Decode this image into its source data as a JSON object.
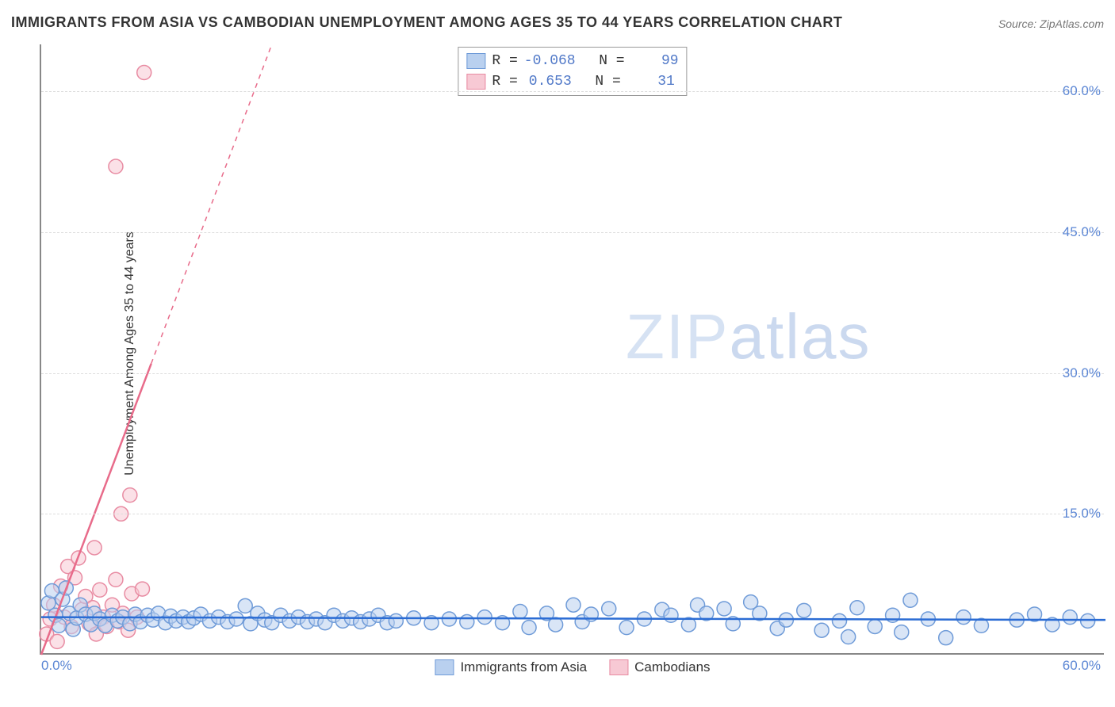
{
  "title": "IMMIGRANTS FROM ASIA VS CAMBODIAN UNEMPLOYMENT AMONG AGES 35 TO 44 YEARS CORRELATION CHART",
  "source": "Source: ZipAtlas.com",
  "ylabel": "Unemployment Among Ages 35 to 44 years",
  "watermark_a": "ZIP",
  "watermark_b": "atlas",
  "chart": {
    "type": "scatter",
    "xlim": [
      0,
      60
    ],
    "ylim": [
      0,
      65
    ],
    "yticks": [
      15,
      30,
      45,
      60
    ],
    "ytick_labels": [
      "15.0%",
      "30.0%",
      "45.0%",
      "60.0%"
    ],
    "xtick_min": "0.0%",
    "xtick_max": "60.0%",
    "grid_color": "#dddddd",
    "axis_color": "#888888",
    "tick_fontcolor": "#5b86d4",
    "marker_radius": 9,
    "marker_stroke_width": 1.5,
    "line_width_solid": 2.5,
    "line_width_dash": 1.5
  },
  "series": [
    {
      "name": "Immigrants from Asia",
      "color_fill": "#b9d0ef",
      "color_stroke": "#6f9bd8",
      "color_line": "#2b6cd4",
      "R": "-0.068",
      "N": "99",
      "trend": {
        "x1": 0,
        "y1": 4.0,
        "x2": 60,
        "y2": 3.7
      },
      "points": [
        [
          0.4,
          5.5
        ],
        [
          0.6,
          6.8
        ],
        [
          0.8,
          4.2
        ],
        [
          1.0,
          3.1
        ],
        [
          1.2,
          5.9
        ],
        [
          1.4,
          7.1
        ],
        [
          1.6,
          4.4
        ],
        [
          1.8,
          2.7
        ],
        [
          2.0,
          3.9
        ],
        [
          2.2,
          5.3
        ],
        [
          2.5,
          4.3
        ],
        [
          2.8,
          3.2
        ],
        [
          3.0,
          4.4
        ],
        [
          3.3,
          3.8
        ],
        [
          3.6,
          3.1
        ],
        [
          4.0,
          4.2
        ],
        [
          4.3,
          3.6
        ],
        [
          4.6,
          4.0
        ],
        [
          5.0,
          3.3
        ],
        [
          5.3,
          4.3
        ],
        [
          5.6,
          3.5
        ],
        [
          6.0,
          4.2
        ],
        [
          6.3,
          3.7
        ],
        [
          6.6,
          4.4
        ],
        [
          7.0,
          3.4
        ],
        [
          7.3,
          4.1
        ],
        [
          7.6,
          3.6
        ],
        [
          8.0,
          4.0
        ],
        [
          8.3,
          3.5
        ],
        [
          8.6,
          3.9
        ],
        [
          9.0,
          4.3
        ],
        [
          9.5,
          3.6
        ],
        [
          10.0,
          4.0
        ],
        [
          10.5,
          3.5
        ],
        [
          11.0,
          3.8
        ],
        [
          11.5,
          5.2
        ],
        [
          11.8,
          3.3
        ],
        [
          12.2,
          4.4
        ],
        [
          12.6,
          3.7
        ],
        [
          13.0,
          3.4
        ],
        [
          13.5,
          4.2
        ],
        [
          14.0,
          3.6
        ],
        [
          14.5,
          4.0
        ],
        [
          15.0,
          3.5
        ],
        [
          15.5,
          3.8
        ],
        [
          16.0,
          3.4
        ],
        [
          16.5,
          4.2
        ],
        [
          17.0,
          3.6
        ],
        [
          17.5,
          3.9
        ],
        [
          18.0,
          3.5
        ],
        [
          18.5,
          3.8
        ],
        [
          19.0,
          4.2
        ],
        [
          19.5,
          3.4
        ],
        [
          20.0,
          3.6
        ],
        [
          21.0,
          3.9
        ],
        [
          22.0,
          3.4
        ],
        [
          23.0,
          3.8
        ],
        [
          24.0,
          3.5
        ],
        [
          25.0,
          4.0
        ],
        [
          26.0,
          3.4
        ],
        [
          27.0,
          4.6
        ],
        [
          27.5,
          2.9
        ],
        [
          28.5,
          4.4
        ],
        [
          29.0,
          3.2
        ],
        [
          30.0,
          5.3
        ],
        [
          30.5,
          3.5
        ],
        [
          31.0,
          4.3
        ],
        [
          32.0,
          4.9
        ],
        [
          33.0,
          2.9
        ],
        [
          34.0,
          3.8
        ],
        [
          35.0,
          4.8
        ],
        [
          35.5,
          4.2
        ],
        [
          36.5,
          3.2
        ],
        [
          37.0,
          5.3
        ],
        [
          37.5,
          4.4
        ],
        [
          38.5,
          4.9
        ],
        [
          39.0,
          3.3
        ],
        [
          40.0,
          5.6
        ],
        [
          40.5,
          4.4
        ],
        [
          41.5,
          2.8
        ],
        [
          42.0,
          3.7
        ],
        [
          43.0,
          4.7
        ],
        [
          44.0,
          2.6
        ],
        [
          45.0,
          3.6
        ],
        [
          45.5,
          1.9
        ],
        [
          46.0,
          5.0
        ],
        [
          47.0,
          3.0
        ],
        [
          48.0,
          4.2
        ],
        [
          48.5,
          2.4
        ],
        [
          49.0,
          5.8
        ],
        [
          50.0,
          3.8
        ],
        [
          51.0,
          1.8
        ],
        [
          52.0,
          4.0
        ],
        [
          53.0,
          3.1
        ],
        [
          55.0,
          3.7
        ],
        [
          56.0,
          4.3
        ],
        [
          57.0,
          3.2
        ],
        [
          58.0,
          4.0
        ],
        [
          59.0,
          3.6
        ]
      ]
    },
    {
      "name": "Cambodians",
      "color_fill": "#f7c9d4",
      "color_stroke": "#e88ba2",
      "color_line": "#e86b8a",
      "R": "0.653",
      "N": "31",
      "trend": {
        "x1": 0,
        "y1": 0.0,
        "x2": 13,
        "y2": 65.0
      },
      "trend_dash_from_x": 6.2,
      "points": [
        [
          0.3,
          2.2
        ],
        [
          0.5,
          3.8
        ],
        [
          0.7,
          5.3
        ],
        [
          0.9,
          1.4
        ],
        [
          1.1,
          7.3
        ],
        [
          1.3,
          4.0
        ],
        [
          1.5,
          9.4
        ],
        [
          1.7,
          3.0
        ],
        [
          1.9,
          8.2
        ],
        [
          2.1,
          10.3
        ],
        [
          2.3,
          4.8
        ],
        [
          2.5,
          6.2
        ],
        [
          2.7,
          3.3
        ],
        [
          2.9,
          5.0
        ],
        [
          3.1,
          2.2
        ],
        [
          3.3,
          6.9
        ],
        [
          3.5,
          4.0
        ],
        [
          3.7,
          3.0
        ],
        [
          4.0,
          5.3
        ],
        [
          4.2,
          8.0
        ],
        [
          4.4,
          3.5
        ],
        [
          4.6,
          4.4
        ],
        [
          4.9,
          2.6
        ],
        [
          5.1,
          6.5
        ],
        [
          5.4,
          4.0
        ],
        [
          5.7,
          7.0
        ],
        [
          4.5,
          15.0
        ],
        [
          5.0,
          17.0
        ],
        [
          4.2,
          52.0
        ],
        [
          5.8,
          62.0
        ],
        [
          3.0,
          11.4
        ]
      ]
    }
  ],
  "bottom_legend": [
    {
      "label": "Immigrants from Asia",
      "fill": "#b9d0ef",
      "stroke": "#6f9bd8"
    },
    {
      "label": "Cambodians",
      "fill": "#f7c9d4",
      "stroke": "#e88ba2"
    }
  ]
}
